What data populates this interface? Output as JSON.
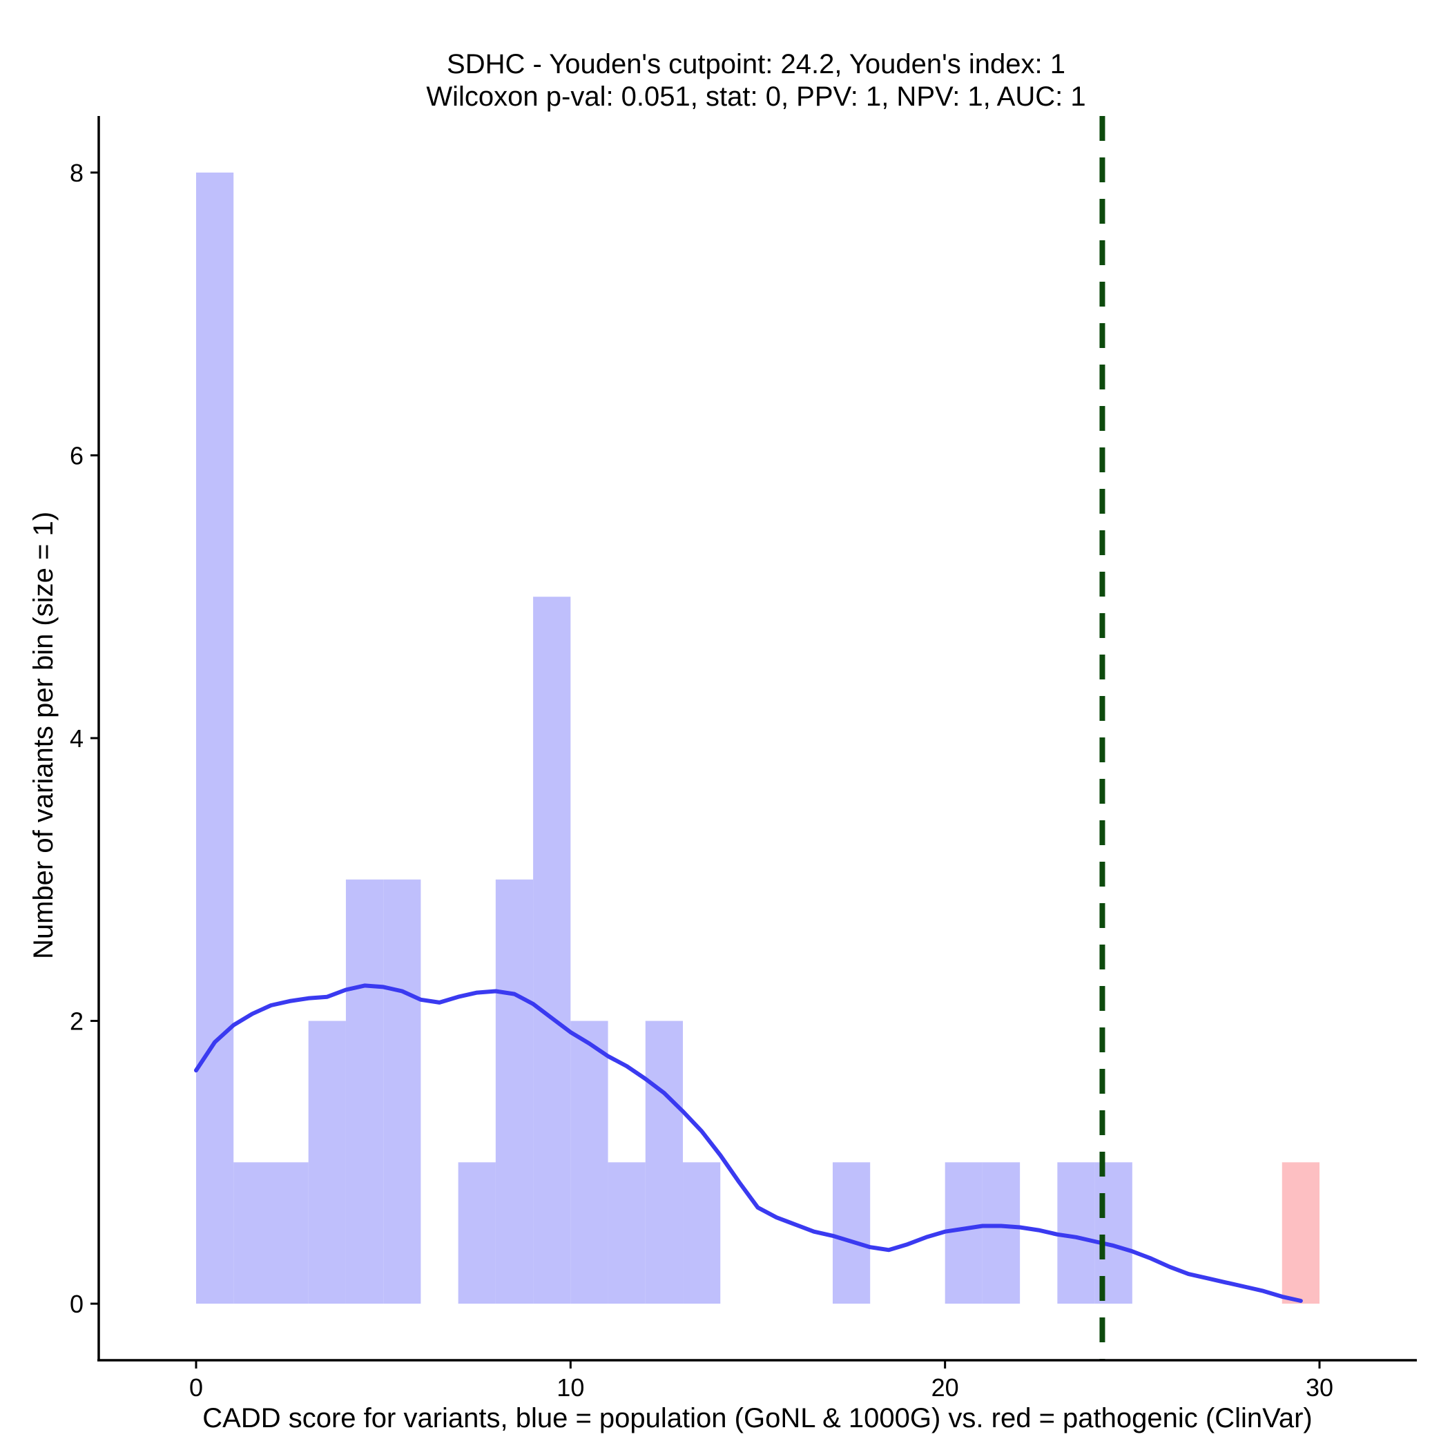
{
  "chart_data": {
    "type": "bar",
    "title_line1": "SDHC - Youden's cutpoint: 24.2, Youden's index: 1",
    "title_line2": "Wilcoxon p-val: 0.051, stat: 0, PPV: 1, NPV: 1, AUC: 1",
    "xlabel": "CADD score for variants, blue = population (GoNL & 1000G) vs. red = pathogenic (ClinVar)",
    "ylabel": "Number of variants per bin (size = 1)",
    "xlim": [
      -2.6,
      32.6
    ],
    "ylim": [
      -0.4,
      8.4
    ],
    "xticks": [
      0,
      10,
      20,
      30
    ],
    "yticks": [
      0,
      2,
      4,
      6,
      8
    ],
    "bin_size": 1,
    "colors": {
      "population": "#bfbffc",
      "pathogenic": "#fdbfc2",
      "density": "#3a3af0",
      "cutpoint": "#0d4a0d"
    },
    "series": [
      {
        "bins": [
          {
            "x0": 0,
            "x1": 1,
            "count": 8
          },
          {
            "x0": 1,
            "x1": 2,
            "count": 1
          },
          {
            "x0": 2,
            "x1": 3,
            "count": 1
          },
          {
            "x0": 3,
            "x1": 4,
            "count": 2
          },
          {
            "x0": 4,
            "x1": 5,
            "count": 3
          },
          {
            "x0": 5,
            "x1": 6,
            "count": 3
          },
          {
            "x0": 7,
            "x1": 8,
            "count": 1
          },
          {
            "x0": 8,
            "x1": 9,
            "count": 3
          },
          {
            "x0": 9,
            "x1": 10,
            "count": 5
          },
          {
            "x0": 10,
            "x1": 11,
            "count": 2
          },
          {
            "x0": 11,
            "x1": 12,
            "count": 1
          },
          {
            "x0": 12,
            "x1": 13,
            "count": 2
          },
          {
            "x0": 13,
            "x1": 14,
            "count": 1
          },
          {
            "x0": 17,
            "x1": 18,
            "count": 1
          },
          {
            "x0": 20,
            "x1": 21,
            "count": 1
          },
          {
            "x0": 21,
            "x1": 22,
            "count": 1
          },
          {
            "x0": 23,
            "x1": 24,
            "count": 1
          },
          {
            "x0": 24,
            "x1": 25,
            "count": 1
          }
        ]
      },
      {
        "bins": [
          {
            "x0": 29,
            "x1": 30,
            "count": 1
          }
        ]
      }
    ],
    "density_curve": [
      [
        0.0,
        1.65
      ],
      [
        0.5,
        1.85
      ],
      [
        1.0,
        1.97
      ],
      [
        1.5,
        2.05
      ],
      [
        2.0,
        2.11
      ],
      [
        2.5,
        2.14
      ],
      [
        3.0,
        2.16
      ],
      [
        3.5,
        2.17
      ],
      [
        4.0,
        2.22
      ],
      [
        4.5,
        2.25
      ],
      [
        5.0,
        2.24
      ],
      [
        5.5,
        2.21
      ],
      [
        6.0,
        2.15
      ],
      [
        6.5,
        2.13
      ],
      [
        7.0,
        2.17
      ],
      [
        7.5,
        2.2
      ],
      [
        8.0,
        2.21
      ],
      [
        8.5,
        2.19
      ],
      [
        9.0,
        2.12
      ],
      [
        9.5,
        2.02
      ],
      [
        10.0,
        1.92
      ],
      [
        10.5,
        1.84
      ],
      [
        11.0,
        1.75
      ],
      [
        11.5,
        1.68
      ],
      [
        12.0,
        1.59
      ],
      [
        12.5,
        1.49
      ],
      [
        13.0,
        1.36
      ],
      [
        13.5,
        1.22
      ],
      [
        14.0,
        1.05
      ],
      [
        14.5,
        0.86
      ],
      [
        15.0,
        0.68
      ],
      [
        15.5,
        0.61
      ],
      [
        16.0,
        0.56
      ],
      [
        16.5,
        0.51
      ],
      [
        17.0,
        0.48
      ],
      [
        17.5,
        0.44
      ],
      [
        18.0,
        0.4
      ],
      [
        18.5,
        0.38
      ],
      [
        19.0,
        0.42
      ],
      [
        19.5,
        0.47
      ],
      [
        20.0,
        0.51
      ],
      [
        20.5,
        0.53
      ],
      [
        21.0,
        0.55
      ],
      [
        21.5,
        0.55
      ],
      [
        22.0,
        0.54
      ],
      [
        22.5,
        0.52
      ],
      [
        23.0,
        0.49
      ],
      [
        23.5,
        0.47
      ],
      [
        24.0,
        0.44
      ],
      [
        24.5,
        0.41
      ],
      [
        25.0,
        0.37
      ],
      [
        25.5,
        0.32
      ],
      [
        26.0,
        0.26
      ],
      [
        26.5,
        0.21
      ],
      [
        27.0,
        0.18
      ],
      [
        27.5,
        0.15
      ],
      [
        28.0,
        0.12
      ],
      [
        28.5,
        0.09
      ],
      [
        29.0,
        0.05
      ],
      [
        29.5,
        0.02
      ]
    ],
    "cutpoint": 24.2,
    "grid": false,
    "legend": "none"
  }
}
